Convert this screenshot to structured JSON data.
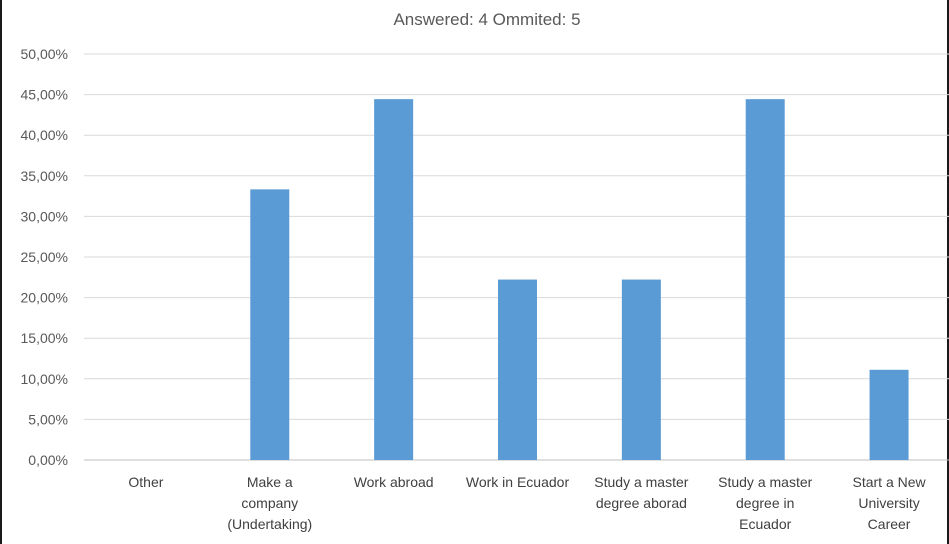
{
  "chart_data": {
    "type": "bar",
    "subtitle": "Answered: 4  Ommited: 5",
    "categories": [
      [
        "Other"
      ],
      [
        "Make a",
        "company",
        "(Undertaking)"
      ],
      [
        "Work abroad"
      ],
      [
        "Work in Ecuador"
      ],
      [
        "Study a master",
        "degree aborad"
      ],
      [
        "Study a master",
        "degree in",
        "Ecuador"
      ],
      [
        "Start a New",
        "University",
        "Career"
      ]
    ],
    "values": [
      0,
      33.33,
      44.44,
      22.22,
      22.22,
      44.44,
      11.11
    ],
    "ylim": [
      0,
      50
    ],
    "yticks": [
      "0,00%",
      "5,00%",
      "10,00%",
      "15,00%",
      "20,00%",
      "25,00%",
      "30,00%",
      "35,00%",
      "40,00%",
      "45,00%",
      "50,00%"
    ],
    "grid": true,
    "bar_color": "#5b9bd5",
    "grid_color": "#d9d9d9"
  }
}
